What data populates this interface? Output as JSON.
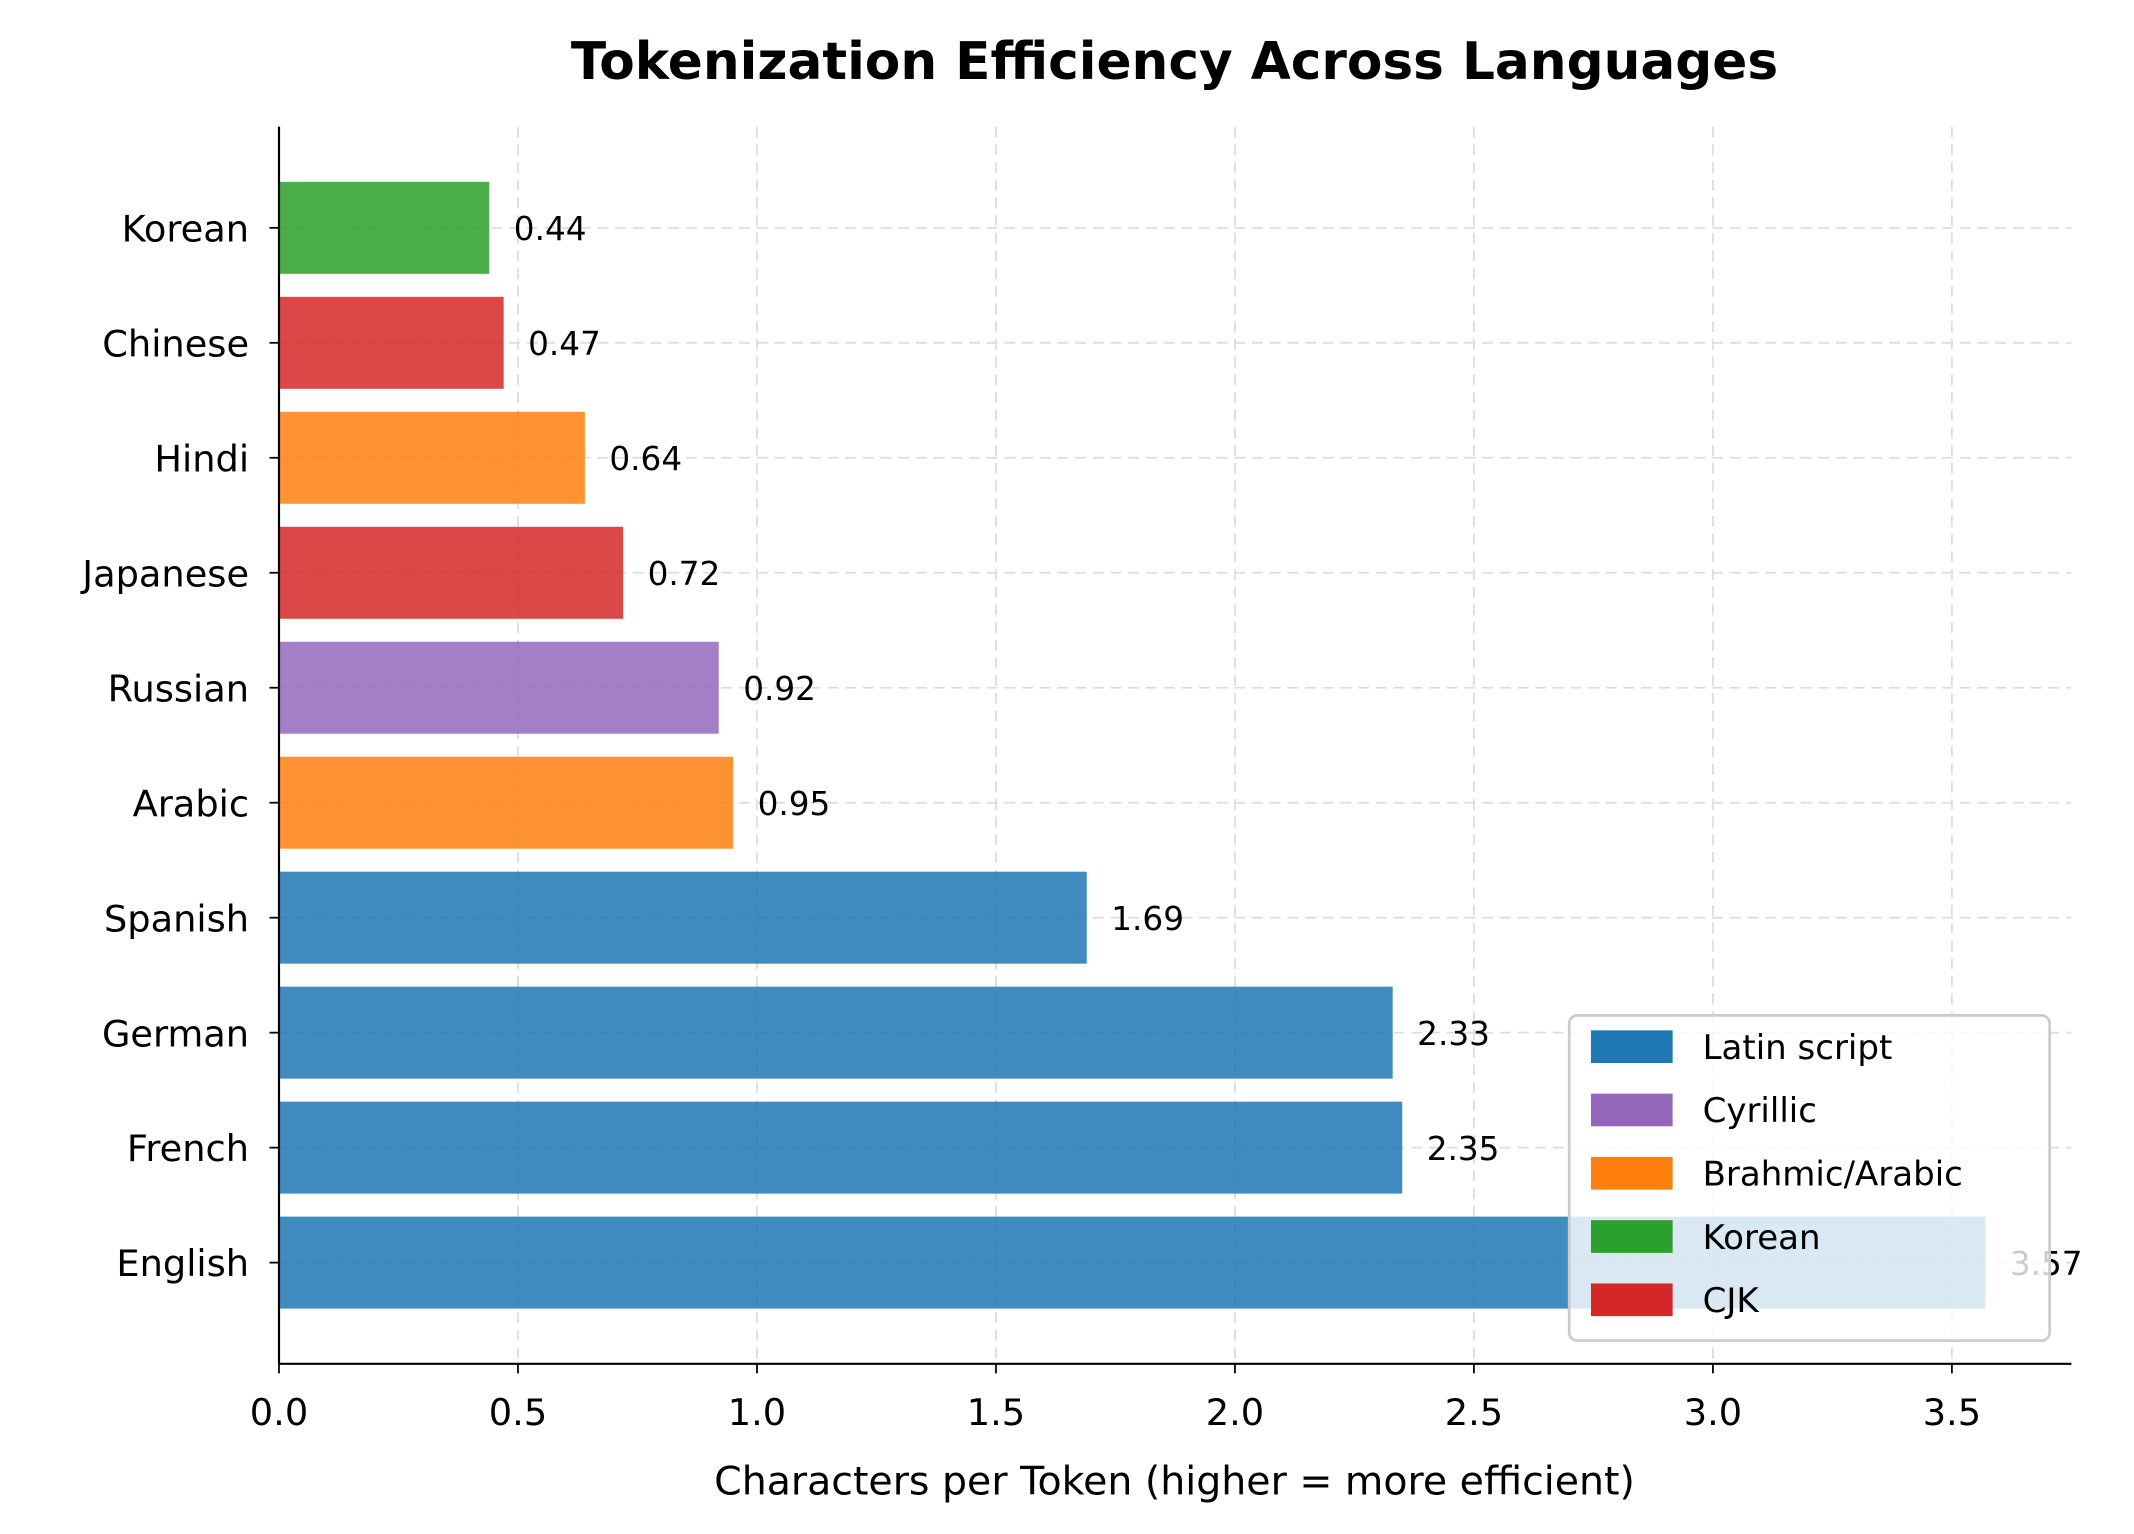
{
  "chart_data": {
    "type": "bar",
    "orientation": "horizontal",
    "title": "Tokenization Efficiency Across Languages",
    "xlabel": "Characters per Token (higher = more efficient)",
    "ylabel": "",
    "xlim": [
      0,
      3.75
    ],
    "xticks": [
      "0.0",
      "0.5",
      "1.0",
      "1.5",
      "2.0",
      "2.5",
      "3.0",
      "3.5"
    ],
    "grid": true,
    "legend_position": "bottom-right",
    "categories": [
      "English",
      "French",
      "German",
      "Spanish",
      "Arabic",
      "Russian",
      "Japanese",
      "Hindi",
      "Chinese",
      "Korean"
    ],
    "values": [
      3.57,
      2.35,
      2.33,
      1.69,
      0.95,
      0.92,
      0.72,
      0.64,
      0.47,
      0.44
    ],
    "data_labels": [
      "3.57",
      "2.35",
      "2.33",
      "1.69",
      "0.95",
      "0.92",
      "0.72",
      "0.64",
      "0.47",
      "0.44"
    ],
    "groups": [
      "Latin script",
      "Latin script",
      "Latin script",
      "Latin script",
      "Brahmic/Arabic",
      "Cyrillic",
      "CJK",
      "Brahmic/Arabic",
      "CJK",
      "Korean"
    ],
    "legend": [
      {
        "label": "Latin script",
        "color": "#1f77b4"
      },
      {
        "label": "Cyrillic",
        "color": "#9467bd"
      },
      {
        "label": "Brahmic/Arabic",
        "color": "#ff7f0e"
      },
      {
        "label": "Korean",
        "color": "#2ca02c"
      },
      {
        "label": "CJK",
        "color": "#d62728"
      }
    ]
  }
}
